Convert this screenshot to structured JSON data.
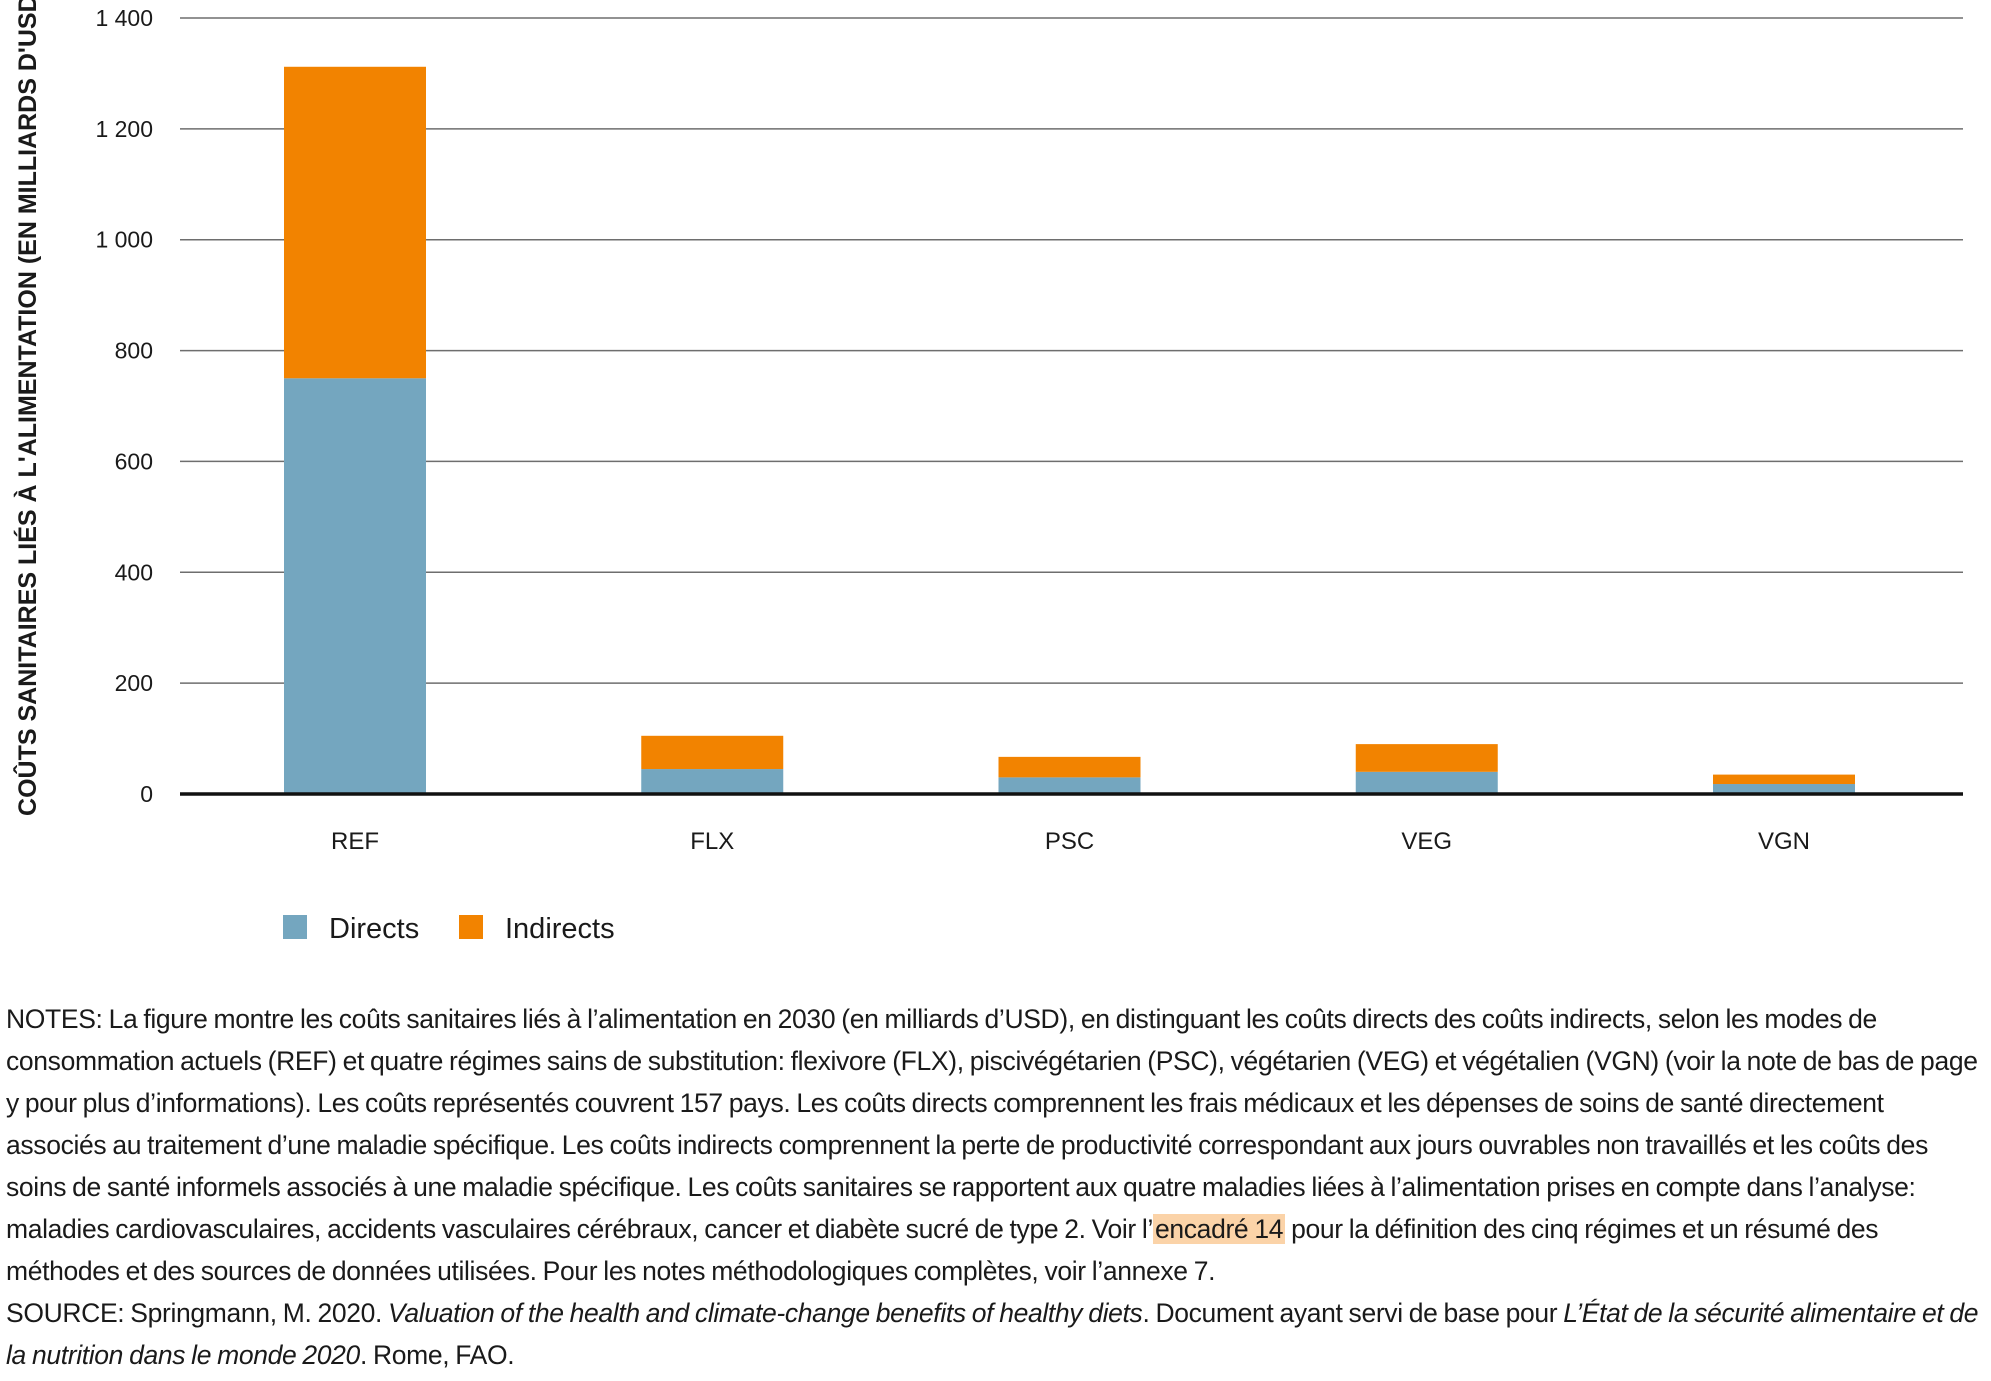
{
  "chart_data": {
    "type": "bar",
    "stacked": true,
    "categories": [
      "REF",
      "FLX",
      "PSC",
      "VEG",
      "VGN"
    ],
    "series": [
      {
        "name": "Directs",
        "values": [
          750,
          45,
          30,
          40,
          18
        ],
        "color": "#74a6bf"
      },
      {
        "name": "Indirects",
        "values": [
          562,
          60,
          37,
          50,
          17
        ],
        "color": "#f28300"
      }
    ],
    "ylabel": "COÛTS SANITAIRES LIÉS À L'ALIMENTATION (EN MILLIARDS D'USD)",
    "ylim": [
      0,
      1400
    ],
    "yticks": [
      0,
      200,
      400,
      600,
      800,
      1000,
      1200,
      1400
    ],
    "ytick_labels": [
      "0",
      "200",
      "400",
      "600",
      "800",
      "1 000",
      "1 200",
      "1 400"
    ],
    "grid": true,
    "legend_placement": "bottom-left"
  },
  "notes": {
    "notes_text_1": "NOTES: La figure montre les coûts sanitaires liés à l’alimentation en 2030 (en milliards d’USD), en distinguant les coûts directs des coûts indirects, selon les modes de consommation actuels (REF) et quatre régimes sains de substitution: flexivore (FLX), piscivégétarien (PSC), végétarien (VEG) et végétalien (VGN) (voir la note de bas de page y pour plus d’informations). Les coûts représentés couvrent 157 pays. Les coûts directs comprennent les frais médicaux et les dépenses de soins de santé directement associés au traitement d’une maladie spécifique. Les coûts indirects comprennent la perte de productivité correspondant aux jours ouvrables non travaillés et les coûts des soins de santé informels associés à une maladie spécifique. Les coûts sanitaires se rapportent aux quatre maladies liées à l’alimentation prises en compte dans l’analyse: maladies cardiovasculaires, accidents vasculaires cérébraux, cancer et diabète sucré de type 2. Voir l’",
    "link_text": "encadré 14",
    "notes_text_2": " pour la définition des cinq régimes et un résumé des méthodes et des sources de données utilisées. Pour les notes méthodologiques complètes, voir l’annexe 7.",
    "source_prefix": "SOURCE: Springmann, M. 2020. ",
    "source_title": "Valuation of the health and climate-change benefits of healthy diets",
    "source_mid": ". Document ayant servi de base pour ",
    "source_report": "L’État de la sécurité alimentaire et de la nutrition dans le monde 2020",
    "source_end": ". Rome, FAO."
  }
}
